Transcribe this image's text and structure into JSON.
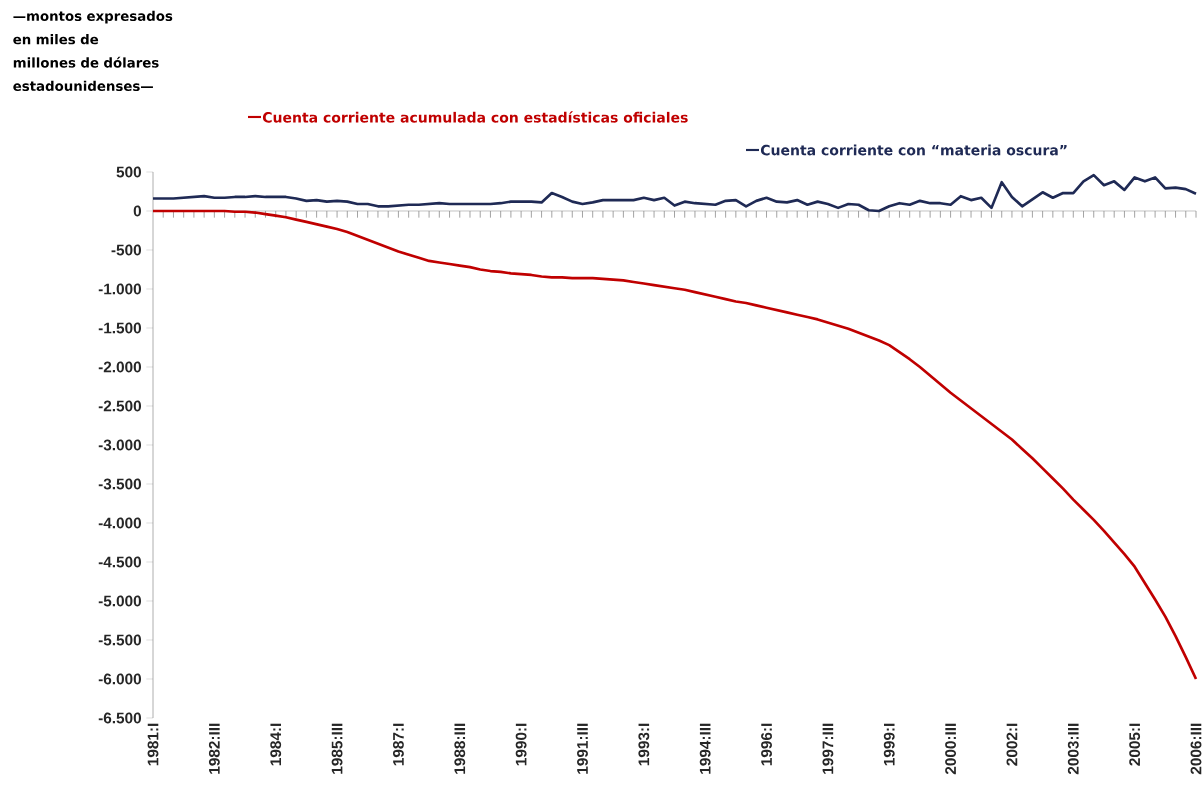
{
  "chart_data": {
    "type": "line",
    "annotations": [
      "—montos expresados en miles de millones de dólares estadounidenses—"
    ],
    "legend": "top",
    "marker": "none",
    "line_style": "solid",
    "categories": [
      "1981:I",
      null,
      null,
      null,
      null,
      null,
      "1982:III",
      null,
      null,
      null,
      null,
      null,
      "1984:I",
      null,
      null,
      null,
      null,
      null,
      "1985:III",
      null,
      null,
      null,
      null,
      null,
      "1987:I",
      null,
      null,
      null,
      null,
      null,
      "1988:III",
      null,
      null,
      null,
      null,
      null,
      "1990:I",
      null,
      null,
      null,
      null,
      null,
      "1991:III",
      null,
      null,
      null,
      null,
      null,
      "1993:I",
      null,
      null,
      null,
      null,
      null,
      "1994:III",
      null,
      null,
      null,
      null,
      null,
      "1996:I",
      null,
      null,
      null,
      null,
      null,
      "1997:III",
      null,
      null,
      null,
      null,
      null,
      "1999:I",
      null,
      null,
      null,
      null,
      null,
      "2000:III",
      null,
      null,
      null,
      null,
      null,
      "2002:I",
      null,
      null,
      null,
      null,
      null,
      "2003:III",
      null,
      null,
      null,
      null,
      null,
      "2005:I",
      null,
      null,
      null,
      null,
      null,
      "2006:III"
    ],
    "ylim": [
      -6500,
      500
    ],
    "yticks": [
      500,
      0,
      {
        "value": -500,
        "label": "-500"
      },
      {
        "value": -1000,
        "label": "-1.000"
      },
      {
        "value": -1500,
        "label": "-1.500"
      },
      {
        "value": -2000,
        "label": "-2.000"
      },
      {
        "value": -2500,
        "label": "-2.500"
      },
      {
        "value": -3000,
        "label": "-3.000"
      },
      {
        "value": -3500,
        "label": "-3.500"
      },
      {
        "value": -4000,
        "label": "-4.000"
      },
      {
        "value": -4500,
        "label": "-4.500"
      },
      {
        "value": -5000,
        "label": "-5.000"
      },
      {
        "value": -5500,
        "label": "-5.500"
      },
      {
        "value": -6000,
        "label": "-6.000"
      },
      {
        "value": -6500,
        "label": "-6.500"
      }
    ],
    "series": [
      {
        "name": "Cuenta corriente acumulada con estadísticas oficiales",
        "color": "#c00000",
        "values": [
          0,
          0,
          0,
          0,
          0,
          0,
          0,
          0,
          -10,
          -10,
          -20,
          -40,
          -60,
          -80,
          -110,
          -140,
          -170,
          -200,
          -230,
          -270,
          -320,
          -370,
          -420,
          -470,
          -520,
          -560,
          -600,
          -640,
          -660,
          -680,
          -700,
          -720,
          -750,
          -770,
          -780,
          -800,
          -810,
          -820,
          -840,
          -850,
          -850,
          -860,
          -860,
          -860,
          -870,
          -880,
          -890,
          -910,
          -930,
          -950,
          -970,
          -990,
          -1010,
          -1040,
          -1070,
          -1100,
          -1130,
          -1160,
          -1180,
          -1210,
          -1240,
          -1270,
          -1300,
          -1330,
          -1360,
          -1390,
          -1430,
          -1470,
          -1510,
          -1560,
          -1610,
          -1660,
          -1720,
          -1810,
          -1900,
          -2000,
          -2110,
          -2220,
          -2330,
          -2430,
          -2530,
          -2630,
          -2730,
          -2830,
          -2930,
          -3050,
          -3170,
          -3300,
          -3430,
          -3560,
          -3700,
          -3830,
          -3960,
          -4100,
          -4250,
          -4400,
          -4560,
          -4770,
          -4980,
          -5200,
          -5450,
          -5720,
          -6000
        ]
      },
      {
        "name": "Cuenta corriente con “materia oscura”",
        "color": "#1f2a55",
        "values": [
          160,
          160,
          160,
          170,
          180,
          190,
          170,
          170,
          180,
          180,
          190,
          180,
          180,
          180,
          160,
          130,
          140,
          120,
          130,
          120,
          90,
          90,
          60,
          60,
          70,
          80,
          80,
          90,
          100,
          90,
          90,
          90,
          90,
          90,
          100,
          120,
          120,
          120,
          110,
          230,
          180,
          120,
          90,
          110,
          140,
          140,
          140,
          140,
          170,
          140,
          170,
          70,
          120,
          100,
          90,
          80,
          130,
          140,
          60,
          130,
          170,
          120,
          110,
          140,
          80,
          120,
          90,
          40,
          90,
          80,
          10,
          0,
          60,
          100,
          80,
          130,
          100,
          100,
          80,
          190,
          140,
          170,
          40,
          370,
          180,
          60,
          150,
          240,
          170,
          230,
          230,
          380,
          460,
          330,
          380,
          270,
          430,
          380,
          430,
          290,
          300,
          280,
          220
        ]
      }
    ]
  }
}
